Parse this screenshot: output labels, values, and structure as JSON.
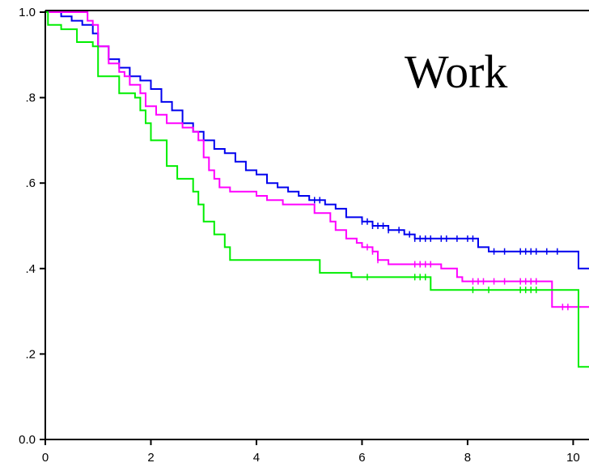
{
  "chart_data": {
    "type": "line",
    "title": "Work",
    "xlabel": "",
    "ylabel": "",
    "xlim": [
      0,
      10.3
    ],
    "ylim": [
      0,
      1.0
    ],
    "x_ticks": [
      {
        "value": 0,
        "label": "0"
      },
      {
        "value": 2,
        "label": "2"
      },
      {
        "value": 4,
        "label": "4"
      },
      {
        "value": 6,
        "label": "6"
      },
      {
        "value": 8,
        "label": "8"
      },
      {
        "value": 10,
        "label": "10"
      }
    ],
    "y_ticks": [
      {
        "value": 0.0,
        "label": "0.0"
      },
      {
        "value": 0.2,
        "label": ".2"
      },
      {
        "value": 0.4,
        "label": ".4"
      },
      {
        "value": 0.6,
        "label": ".6"
      },
      {
        "value": 0.8,
        "label": ".8"
      },
      {
        "value": 1.0,
        "label": "1.0"
      }
    ],
    "grid": false,
    "step": true,
    "series": [
      {
        "color": "#0000ee",
        "points": [
          [
            0,
            1.0
          ],
          [
            0.3,
            0.99
          ],
          [
            0.5,
            0.98
          ],
          [
            0.7,
            0.97
          ],
          [
            0.9,
            0.95
          ],
          [
            1.0,
            0.92
          ],
          [
            1.2,
            0.89
          ],
          [
            1.4,
            0.87
          ],
          [
            1.6,
            0.85
          ],
          [
            1.8,
            0.84
          ],
          [
            2.0,
            0.82
          ],
          [
            2.2,
            0.79
          ],
          [
            2.4,
            0.77
          ],
          [
            2.6,
            0.74
          ],
          [
            2.8,
            0.72
          ],
          [
            3.0,
            0.7
          ],
          [
            3.2,
            0.68
          ],
          [
            3.4,
            0.67
          ],
          [
            3.6,
            0.65
          ],
          [
            3.8,
            0.63
          ],
          [
            4.0,
            0.62
          ],
          [
            4.2,
            0.6
          ],
          [
            4.4,
            0.59
          ],
          [
            4.6,
            0.58
          ],
          [
            4.8,
            0.57
          ],
          [
            5.0,
            0.56
          ],
          [
            5.3,
            0.55
          ],
          [
            5.5,
            0.54
          ],
          [
            5.7,
            0.52
          ],
          [
            6.0,
            0.51
          ],
          [
            6.2,
            0.5
          ],
          [
            6.5,
            0.49
          ],
          [
            6.8,
            0.48
          ],
          [
            7.0,
            0.47
          ],
          [
            7.5,
            0.47
          ],
          [
            8.2,
            0.45
          ],
          [
            8.4,
            0.44
          ],
          [
            9.0,
            0.44
          ],
          [
            10.0,
            0.44
          ],
          [
            10.1,
            0.4
          ],
          [
            10.3,
            0.4
          ]
        ],
        "censored": [
          5.1,
          5.2,
          6.0,
          6.1,
          6.2,
          6.3,
          6.4,
          6.5,
          6.7,
          6.9,
          7.0,
          7.1,
          7.2,
          7.3,
          7.5,
          7.6,
          7.8,
          8.0,
          8.1,
          8.5,
          8.7,
          9.0,
          9.1,
          9.2,
          9.3,
          9.5,
          9.7
        ]
      },
      {
        "color": "#ff00ff",
        "points": [
          [
            0,
            1.0
          ],
          [
            0.8,
            0.98
          ],
          [
            0.9,
            0.97
          ],
          [
            1.0,
            0.92
          ],
          [
            1.2,
            0.88
          ],
          [
            1.4,
            0.86
          ],
          [
            1.5,
            0.85
          ],
          [
            1.6,
            0.83
          ],
          [
            1.8,
            0.81
          ],
          [
            1.9,
            0.78
          ],
          [
            2.1,
            0.76
          ],
          [
            2.3,
            0.74
          ],
          [
            2.6,
            0.73
          ],
          [
            2.8,
            0.72
          ],
          [
            2.9,
            0.7
          ],
          [
            3.0,
            0.66
          ],
          [
            3.1,
            0.63
          ],
          [
            3.2,
            0.61
          ],
          [
            3.3,
            0.59
          ],
          [
            3.5,
            0.58
          ],
          [
            4.0,
            0.57
          ],
          [
            4.2,
            0.56
          ],
          [
            4.5,
            0.55
          ],
          [
            5.1,
            0.53
          ],
          [
            5.4,
            0.51
          ],
          [
            5.5,
            0.49
          ],
          [
            5.7,
            0.47
          ],
          [
            5.9,
            0.46
          ],
          [
            6.0,
            0.45
          ],
          [
            6.2,
            0.44
          ],
          [
            6.3,
            0.42
          ],
          [
            6.5,
            0.41
          ],
          [
            7.2,
            0.41
          ],
          [
            7.5,
            0.4
          ],
          [
            7.8,
            0.38
          ],
          [
            7.9,
            0.37
          ],
          [
            9.5,
            0.37
          ],
          [
            9.6,
            0.31
          ],
          [
            10.3,
            0.31
          ]
        ],
        "censored": [
          6.1,
          6.2,
          6.3,
          7.0,
          7.1,
          7.2,
          7.3,
          8.1,
          8.2,
          8.3,
          8.5,
          8.7,
          9.0,
          9.1,
          9.2,
          9.3,
          9.8,
          9.9
        ]
      },
      {
        "color": "#00ee00",
        "points": [
          [
            0,
            1.0
          ],
          [
            0.05,
            0.97
          ],
          [
            0.3,
            0.96
          ],
          [
            0.6,
            0.93
          ],
          [
            0.9,
            0.92
          ],
          [
            1.0,
            0.85
          ],
          [
            1.4,
            0.81
          ],
          [
            1.7,
            0.8
          ],
          [
            1.8,
            0.77
          ],
          [
            1.9,
            0.74
          ],
          [
            2.0,
            0.7
          ],
          [
            2.3,
            0.64
          ],
          [
            2.5,
            0.61
          ],
          [
            2.8,
            0.58
          ],
          [
            2.9,
            0.55
          ],
          [
            3.0,
            0.51
          ],
          [
            3.2,
            0.48
          ],
          [
            3.4,
            0.45
          ],
          [
            3.5,
            0.42
          ],
          [
            5.2,
            0.39
          ],
          [
            5.8,
            0.38
          ],
          [
            7.3,
            0.35
          ],
          [
            10.0,
            0.35
          ],
          [
            10.1,
            0.17
          ],
          [
            10.3,
            0.17
          ]
        ],
        "censored": [
          6.1,
          7.0,
          7.1,
          7.2,
          8.1,
          8.4,
          9.0,
          9.1,
          9.2,
          9.3
        ]
      }
    ]
  }
}
